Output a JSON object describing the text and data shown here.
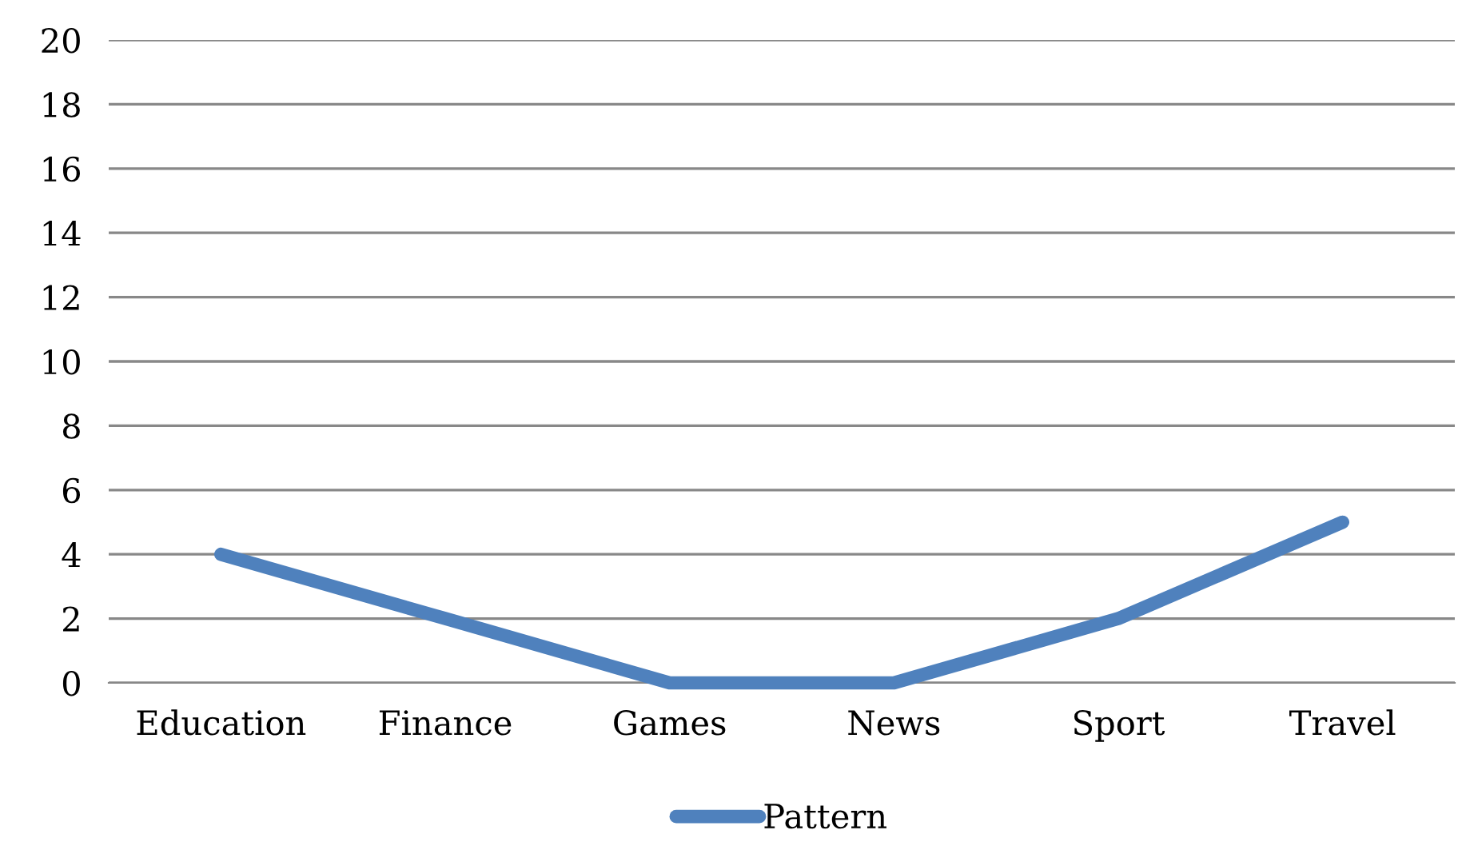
{
  "chart_data": {
    "type": "line",
    "categories": [
      "Education",
      "Finance",
      "Games",
      "News",
      "Sport",
      "Travel"
    ],
    "series": [
      {
        "name": "Pattern",
        "color": "#4f81bd",
        "values": [
          4,
          2,
          0,
          0,
          2,
          5
        ]
      }
    ],
    "ylim": [
      0,
      20
    ],
    "yticks": [
      0,
      2,
      4,
      6,
      8,
      10,
      12,
      14,
      16,
      18,
      20
    ],
    "grid": "y",
    "legend": "bottom",
    "marker": "none",
    "line_style": "solid"
  }
}
